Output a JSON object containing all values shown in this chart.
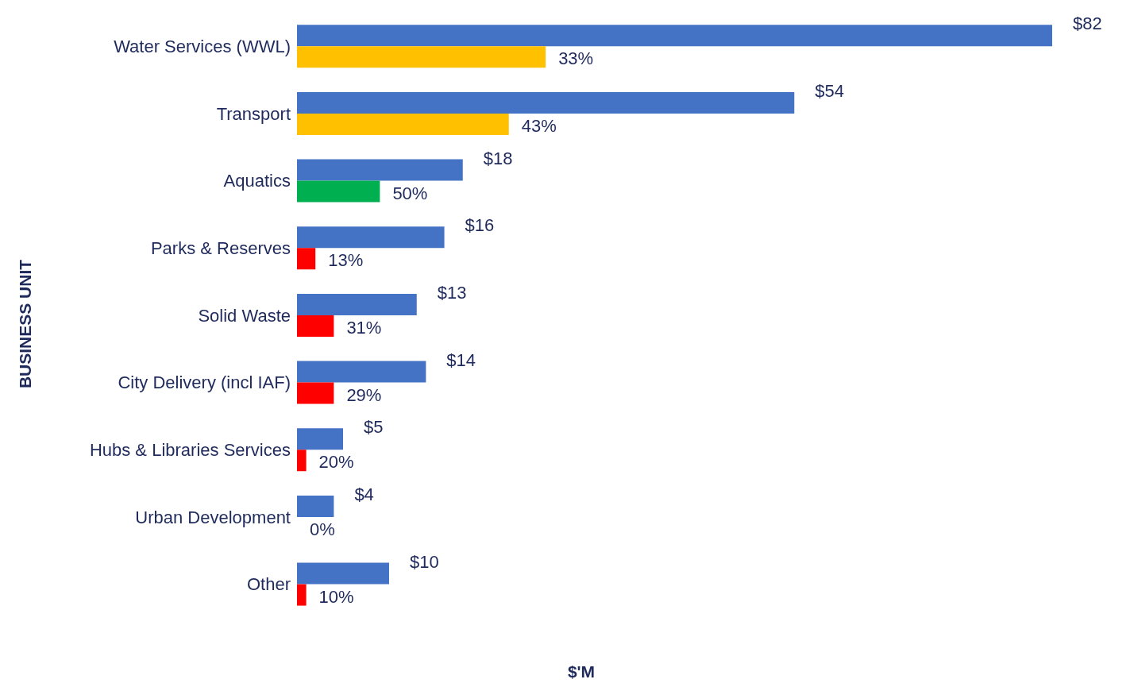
{
  "chart_data": {
    "type": "bar",
    "orientation": "horizontal",
    "xlabel": "$'M",
    "ylabel": "BUSINESS UNIT",
    "categories": [
      "Water Services (WWL)",
      "Transport",
      "Aquatics",
      "Parks & Reserves",
      "Solid Waste",
      "City Delivery (incl IAF)",
      "Hubs & Libraries Services",
      "Urban Development",
      "Other"
    ],
    "series": [
      {
        "color": "#4472c4",
        "values": [
          82,
          54,
          18,
          16,
          13,
          14,
          5,
          4,
          10
        ],
        "value_labels": [
          "$82",
          "$54",
          "$18",
          "$16",
          "$13",
          "$14",
          "$5",
          "$4",
          "$10"
        ]
      },
      {
        "colors": [
          "#ffc000",
          "#ffc000",
          "#00b050",
          "#ff0000",
          "#ff0000",
          "#ff0000",
          "#ff0000",
          "#ff0000",
          "#ff0000"
        ],
        "values": [
          27,
          23,
          9,
          2,
          4,
          4,
          1,
          0,
          1
        ]
      }
    ],
    "annotations": [
      {
        "text": "33%",
        "x": 27,
        "y": "Water Services (WWL)"
      },
      {
        "text": "43%",
        "x": 23,
        "y": "Transport"
      },
      {
        "text": "50%",
        "x": 9,
        "y": "Aquatics"
      },
      {
        "text": "13%",
        "x": 2,
        "y": "Parks & Reserves"
      },
      {
        "text": "31%",
        "x": 4,
        "y": "Solid Waste"
      },
      {
        "text": "29%",
        "x": 4,
        "y": "City Delivery (incl IAF)"
      },
      {
        "text": "20%",
        "x": 1,
        "y": "Hubs & Libraries Services"
      },
      {
        "text": "0%",
        "x": 0,
        "y": "Urban Development"
      },
      {
        "text": "10%",
        "x": 1,
        "y": "Other"
      }
    ],
    "tick_labels": "y",
    "legend": false
  }
}
